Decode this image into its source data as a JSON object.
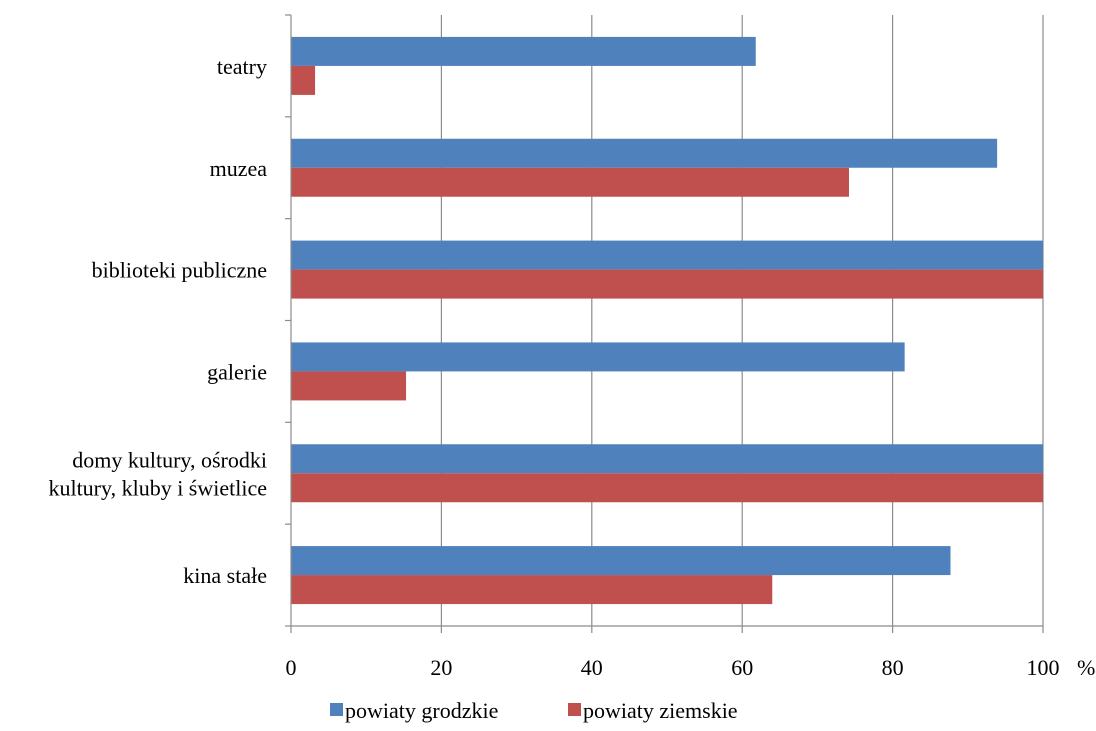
{
  "chart_data": {
    "type": "bar",
    "orientation": "horizontal",
    "categories": [
      [
        "teatry"
      ],
      [
        "muzea"
      ],
      [
        "biblioteki publiczne"
      ],
      [
        "galerie"
      ],
      [
        "domy kultury, ośrodki",
        "kultury, kluby i świetlice"
      ],
      [
        "kina stałe"
      ]
    ],
    "series": [
      {
        "name": "powiaty grodzkie",
        "color": "#4f81bd",
        "values": [
          61.8,
          93.9,
          100,
          81.6,
          100,
          87.7
        ]
      },
      {
        "name": "powiaty ziemskie",
        "color": "#c0504d",
        "values": [
          3.2,
          74.2,
          100,
          15.3,
          100,
          64.0
        ]
      }
    ],
    "xlim": [
      0,
      100
    ],
    "xticks": [
      0,
      20,
      40,
      60,
      80,
      100
    ],
    "x_unit": "%",
    "grid": true,
    "legend_position": "bottom"
  }
}
